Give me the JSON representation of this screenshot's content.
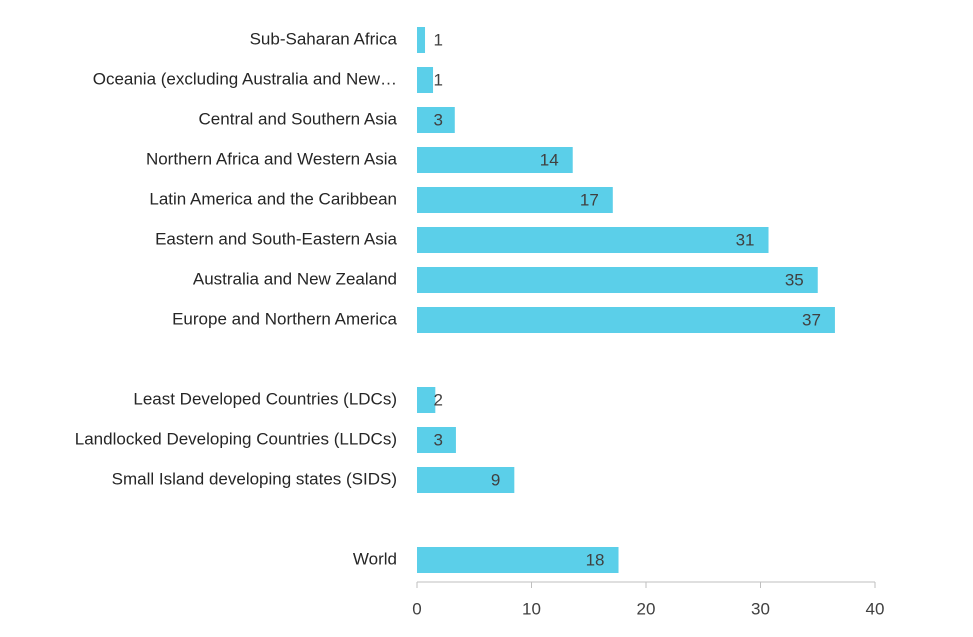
{
  "chart_data": {
    "type": "barh",
    "categories": [
      "Sub-Saharan Africa",
      "Oceania (excluding Australia and New…",
      "Central and Southern Asia",
      "Northern Africa and Western Asia",
      "Latin America and the Caribbean",
      "Eastern and South-Eastern Asia",
      "Australia and New Zealand",
      "Europe and Northern America",
      null,
      "Least Developed Countries (LDCs)",
      "Landlocked Developing Countries (LLDCs)",
      "Small Island developing states (SIDS)",
      null,
      "World"
    ],
    "values": [
      0.7,
      1.4,
      3.3,
      13.6,
      17.1,
      30.7,
      35.0,
      36.5,
      null,
      1.6,
      3.4,
      8.5,
      null,
      17.6
    ],
    "value_labels": [
      "1",
      "1",
      "3",
      "14",
      "17",
      "31",
      "35",
      "37",
      null,
      "2",
      "3",
      "9",
      null,
      "18"
    ],
    "color": "#5bcfe9",
    "xlim": [
      0,
      40
    ],
    "xticks": [
      0,
      10,
      20,
      30,
      40
    ]
  }
}
